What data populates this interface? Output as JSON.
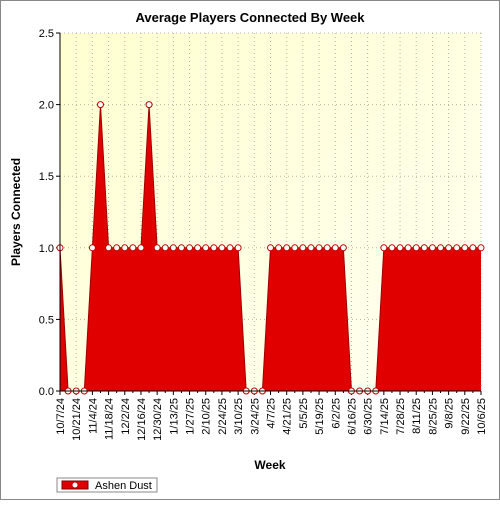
{
  "chart_data": {
    "type": "area",
    "title": "Average Players Connected By Week",
    "x_label": "Week",
    "y_label": "Players Connected",
    "categories": [
      "10/7/24",
      null,
      "10/21/24",
      null,
      "11/4/24",
      null,
      "11/18/24",
      null,
      "12/2/24",
      null,
      "12/16/24",
      null,
      "12/30/24",
      null,
      "1/13/25",
      null,
      "1/27/25",
      null,
      "2/10/25",
      null,
      "2/24/25",
      null,
      "3/10/25",
      null,
      "3/24/25",
      null,
      "4/7/25",
      null,
      "4/21/25",
      null,
      "5/5/25",
      null,
      "5/19/25",
      null,
      "6/2/25",
      null,
      "6/16/25",
      null,
      "6/30/25",
      null,
      "7/14/25",
      null,
      "7/28/25",
      null,
      "8/11/25",
      null,
      "8/25/25",
      null,
      "9/8/25",
      null,
      "9/22/25",
      null,
      "10/6/25"
    ],
    "series": [
      {
        "name": "Ashen Dust",
        "color": "#e00000",
        "values": [
          1,
          0,
          0,
          0,
          1,
          2,
          1,
          1,
          1,
          1,
          1,
          2,
          1,
          1,
          1,
          1,
          1,
          1,
          1,
          1,
          1,
          1,
          1,
          0,
          0,
          0,
          1,
          1,
          1,
          1,
          1,
          1,
          1,
          1,
          1,
          1,
          0,
          0,
          0,
          0,
          1,
          1,
          1,
          1,
          1,
          1,
          1,
          1,
          1,
          1,
          1,
          1,
          1
        ]
      }
    ],
    "ylim": [
      0,
      2.5
    ],
    "yticks": [
      {
        "value": 0,
        "label": "0.0"
      },
      {
        "value": 0.5,
        "label": "0.5"
      },
      {
        "value": 1,
        "label": "1.0"
      },
      {
        "value": 1.5,
        "label": "1.5"
      },
      {
        "value": 2,
        "label": "2.0"
      },
      {
        "value": 2.5,
        "label": "2.5"
      }
    ],
    "grid": true,
    "legend": "bottom-left"
  }
}
